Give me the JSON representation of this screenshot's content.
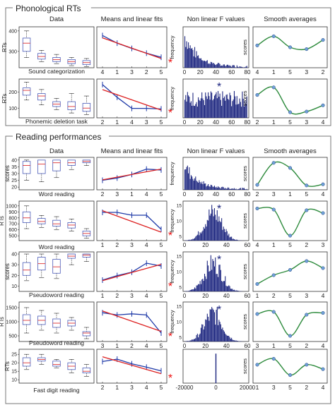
{
  "sections": [
    {
      "title": "Phonological RTs",
      "col_titles": [
        "Data",
        "Means and linear fits",
        "Non linear F values",
        "Smooth averages"
      ],
      "rows": [
        {
          "label": "Sound categorization",
          "box": {
            "ylabel": "RTs",
            "yticks": [
              "400",
              "300"
            ],
            "ylim": [
              220,
              420
            ],
            "boxes": [
              [
                270,
                300,
                340,
                365,
                400
              ],
              [
                250,
                262,
                275,
                290,
                305
              ],
              [
                240,
                250,
                260,
                270,
                285
              ],
              [
                230,
                240,
                250,
                260,
                270
              ],
              [
                225,
                235,
                245,
                255,
                265
              ]
            ]
          },
          "means": {
            "xticks": [
              "4",
              "1",
              "3",
              "2",
              "5"
            ],
            "series": [
              8,
              6.7,
              5.8,
              5,
              4.3
            ],
            "fit": [
              7.6,
              6.6,
              5.7,
              4.9,
              4.1
            ],
            "star": true
          },
          "hist": {
            "ylabel": "frequency",
            "xticks": [
              "0",
              "20",
              "40",
              "60",
              "80"
            ],
            "xlim": [
              0,
              85
            ],
            "ymax": 12,
            "profile": "decay",
            "star": false
          },
          "smooth": {
            "ylabel": "scores",
            "xticks": [
              "4",
              "1",
              "5",
              "3",
              "2"
            ],
            "points": [
              0.55,
              0.8,
              0.5,
              0.45,
              0.7
            ]
          }
        },
        {
          "label": "Phonemic deletion task",
          "box": {
            "ylabel": "RTs",
            "yticks": [
              "200",
              "100"
            ],
            "ylim": [
              40,
              280
            ],
            "boxes": [
              [
                150,
                180,
                210,
                225,
                260
              ],
              [
                120,
                150,
                175,
                190,
                215
              ],
              [
                90,
                110,
                125,
                140,
                160
              ],
              [
                70,
                90,
                110,
                140,
                190
              ],
              [
                60,
                80,
                100,
                130,
                175
              ]
            ]
          },
          "means": {
            "xticks": [
              "2",
              "1",
              "4",
              "3",
              "5"
            ],
            "series": [
              8.5,
              6.2,
              4.2,
              4.2,
              4.1
            ],
            "fit": [
              7.6,
              6.7,
              5.7,
              4.8,
              3.9
            ],
            "star": true
          },
          "hist": {
            "ylabel": "frequency",
            "xticks": [
              "0",
              "20",
              "40",
              "60",
              "80"
            ],
            "xlim": [
              0,
              85
            ],
            "ymax": 12,
            "profile": "flat",
            "star": true
          },
          "smooth": {
            "ylabel": "scores",
            "xticks": [
              "2",
              "1",
              "5",
              "3",
              "4"
            ],
            "points": [
              0.6,
              0.82,
              0.1,
              0.12,
              0.3
            ]
          }
        }
      ]
    },
    {
      "title": "Reading performances",
      "col_titles": [
        "Data",
        "Means and linear fits",
        "Non linear F values",
        "Smooth averages"
      ],
      "rows": [
        {
          "label": "Word reading",
          "box": {
            "ylabel": "scores",
            "yticks": [
              "40",
              "35",
              "30",
              "25",
              "20"
            ],
            "ylim": [
              18,
              42
            ],
            "boxes": [
              [
                25,
                30,
                36,
                39,
                40
              ],
              [
                24,
                30,
                37,
                40,
                40
              ],
              [
                27,
                32,
                38,
                40,
                40
              ],
              [
                33,
                36,
                38,
                40,
                40
              ],
              [
                36,
                38,
                39,
                40,
                40
              ]
            ]
          },
          "means": {
            "xticks": [
              "2",
              "3",
              "1",
              "4",
              "5"
            ],
            "series": [
              4.5,
              5,
              5.8,
              7,
              6.8
            ],
            "fit": [
              4.6,
              5.2,
              5.8,
              6.4,
              7
            ],
            "star": false
          },
          "hist": {
            "ylabel": "frequency",
            "xticks": [
              "0",
              "20",
              "40",
              "60",
              "80"
            ],
            "xlim": [
              0,
              85
            ],
            "ymax": 12,
            "profile": "decay",
            "star": false
          },
          "smooth": {
            "ylabel": "scores",
            "xticks": [
              "2",
              "3",
              "1",
              "5",
              "4"
            ],
            "points": [
              0.1,
              0.88,
              0.7,
              0.08,
              0.12
            ]
          }
        },
        {
          "label": "Word reading",
          "box": {
            "ylabel": "RTs",
            "yticks": [
              "1000",
              "900",
              "800",
              "700",
              "600",
              "500"
            ],
            "ylim": [
              420,
              1080
            ],
            "boxes": [
              [
                620,
                720,
                800,
                900,
                1000
              ],
              [
                640,
                700,
                740,
                790,
                840
              ],
              [
                600,
                660,
                700,
                760,
                820
              ],
              [
                580,
                630,
                680,
                720,
                780
              ],
              [
                460,
                500,
                540,
                580,
                620
              ]
            ]
          },
          "means": {
            "xticks": [
              "1",
              "2",
              "3",
              "4",
              "5"
            ],
            "series": [
              7.5,
              7.5,
              7,
              7,
              4.5
            ],
            "fit": [
              7.8,
              7.2,
              6.3,
              5.2,
              4
            ],
            "star": true
          },
          "hist": {
            "ylabel": "frequency",
            "xticks": [
              "0",
              "20",
              "40",
              "60"
            ],
            "xlim": [
              0,
              65
            ],
            "ymax": 16,
            "profile": "hump",
            "star": true,
            "yticks": [
              "15",
              "10",
              "5"
            ]
          },
          "smooth": {
            "ylabel": "scores",
            "xticks": [
              "4",
              "1",
              "5",
              "2",
              "3"
            ],
            "points": [
              0.85,
              0.82,
              0.08,
              0.8,
              0.72
            ]
          }
        },
        {
          "label": "Pseudoword reading",
          "box": {
            "ylabel": "scores",
            "yticks": [
              "40",
              "30",
              "20",
              "10"
            ],
            "ylim": [
              5,
              42
            ],
            "boxes": [
              [
                15,
                20,
                25,
                32,
                40
              ],
              [
                18,
                25,
                31,
                37,
                40
              ],
              [
                17,
                22,
                28,
                35,
                40
              ],
              [
                30,
                36,
                38,
                40,
                40
              ],
              [
                33,
                37,
                39,
                40,
                40
              ]
            ]
          },
          "means": {
            "xticks": [
              "1",
              "2",
              "3",
              "4",
              "5"
            ],
            "series": [
              4.5,
              5.3,
              5.9,
              7.5,
              7
            ],
            "fit": [
              4.4,
              5.1,
              5.9,
              6.6,
              7.3
            ],
            "star": true
          },
          "hist": {
            "ylabel": "frequency",
            "xticks": [
              "0",
              "20",
              "40",
              "60"
            ],
            "xlim": [
              0,
              65
            ],
            "ymax": 16,
            "profile": "hump",
            "star": true,
            "yticks": [
              "15",
              "10",
              "5"
            ]
          },
          "smooth": {
            "ylabel": "scores",
            "xticks": [
              "1",
              "2",
              "5",
              "3",
              "4"
            ],
            "points": [
              0.15,
              0.4,
              0.55,
              0.8,
              0.6
            ]
          }
        },
        {
          "label": "Pseudoword reading",
          "box": {
            "ylabel": "RTs",
            "yticks": [
              "1500",
              "1000",
              "500"
            ],
            "ylim": [
              300,
              1700
            ],
            "boxes": [
              [
                600,
                900,
                1050,
                1250,
                1500
              ],
              [
                700,
                900,
                1050,
                1200,
                1400
              ],
              [
                600,
                800,
                950,
                1100,
                1300
              ],
              [
                700,
                850,
                950,
                1050,
                1150
              ],
              [
                400,
                500,
                600,
                650,
                800
              ]
            ]
          },
          "means": {
            "xticks": [
              "3",
              "1",
              "2",
              "4",
              "5"
            ],
            "series": [
              7.6,
              7.2,
              7.4,
              7.2,
              4
            ],
            "fit": [
              7.9,
              7,
              6.1,
              5.2,
              4.3
            ],
            "star": true
          },
          "hist": {
            "ylabel": "frequency",
            "xticks": [
              "0",
              "20",
              "40",
              "60"
            ],
            "xlim": [
              0,
              65
            ],
            "ymax": 16,
            "profile": "hump",
            "star": true,
            "yticks": [
              "15",
              "10",
              "5"
            ]
          },
          "smooth": {
            "ylabel": "scores",
            "xticks": [
              "3",
              "1",
              "5",
              "2",
              "4"
            ],
            "points": [
              0.72,
              0.78,
              0.1,
              0.7,
              0.75
            ]
          }
        },
        {
          "label": "Fast digit reading",
          "box": {
            "ylabel": "RTs",
            "yticks": [
              "25",
              "20",
              "15",
              "10"
            ],
            "ylim": [
              8,
              28
            ],
            "boxes": [
              [
                16,
                18,
                20,
                23,
                25
              ],
              [
                19,
                21,
                22,
                23,
                25
              ],
              [
                17,
                18,
                19,
                21,
                22
              ],
              [
                14,
                16,
                18,
                20,
                22
              ],
              [
                12,
                14,
                15,
                17,
                19
              ]
            ]
          },
          "means": {
            "xticks": [
              "2",
              "1",
              "3",
              "4",
              "5"
            ],
            "series": [
              7,
              7.5,
              6.5,
              5.8,
              5
            ],
            "fit": [
              8,
              7.2,
              6.2,
              5.3,
              4.4
            ],
            "star": true
          },
          "hist": {
            "ylabel": "",
            "xticks": [
              "-20000",
              "0",
              "20000"
            ],
            "xlim": [
              -25000,
              25000
            ],
            "ymax": 16,
            "profile": "spike",
            "star": false
          },
          "smooth": {
            "ylabel": "scores",
            "xticks": [
              "1",
              "3",
              "5",
              "2",
              "4"
            ],
            "points": [
              0.55,
              0.75,
              0.2,
              0.55,
              0.4
            ]
          }
        }
      ]
    }
  ],
  "chart_data": {
    "type": "bar",
    "title": "Phonological RTs / Reading performances",
    "panels": [
      "Data",
      "Means and linear fits",
      "Non linear F values",
      "Smooth averages"
    ],
    "rows": [
      "Sound categorization",
      "Phonemic deletion task",
      "Word reading",
      "Word reading",
      "Pseudoword reading",
      "Pseudoword reading",
      "Fast digit reading"
    ]
  }
}
